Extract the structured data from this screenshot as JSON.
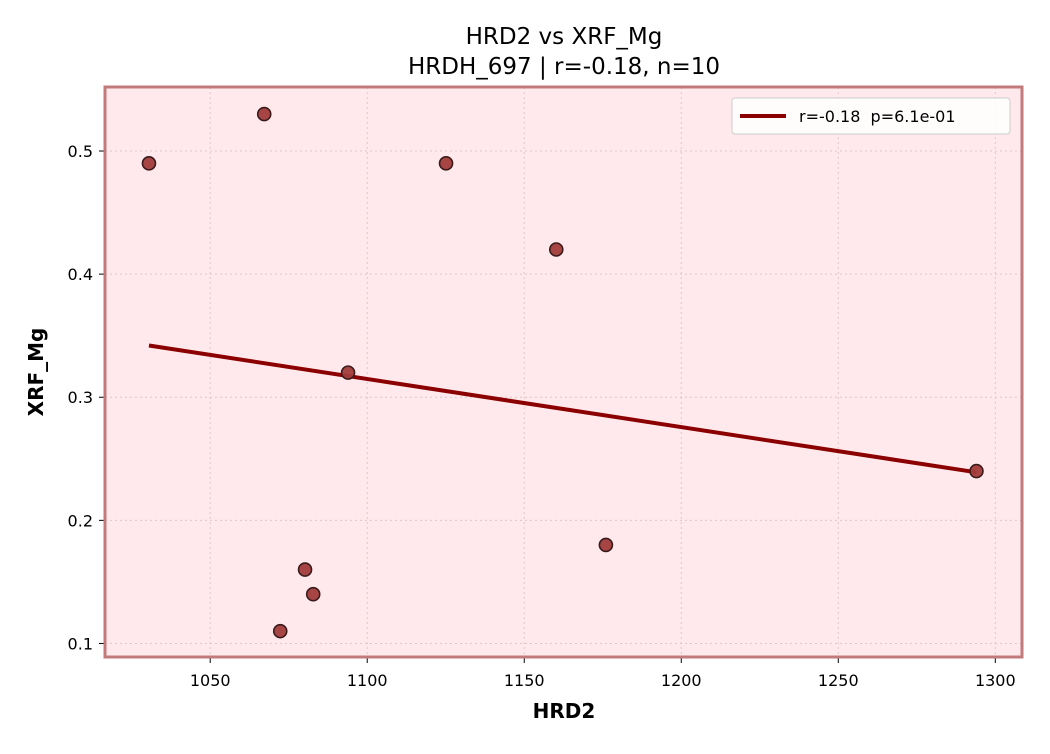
{
  "chart_data": {
    "type": "scatter",
    "title": "HRD2 vs XRF_Mg",
    "subtitle": "HRDH_697 | r=-0.18, n=10",
    "xlabel": "HRD2",
    "ylabel": "XRF_Mg",
    "xlim": [
      1016.5,
      1308.5
    ],
    "ylim": [
      0.089,
      0.552
    ],
    "x_ticks": [
      1050,
      1100,
      1150,
      1200,
      1250,
      1300
    ],
    "x_tick_labels": [
      "1050",
      "1100",
      "1150",
      "1200",
      "1250",
      "1300"
    ],
    "y_ticks": [
      0.1,
      0.2,
      0.3,
      0.4,
      0.5
    ],
    "y_tick_labels": [
      "0.1",
      "0.2",
      "0.3",
      "0.4",
      "0.5"
    ],
    "grid": true,
    "legend_position": "top-right",
    "points": [
      {
        "x": 1030.5,
        "y": 0.49
      },
      {
        "x": 1067.2,
        "y": 0.53
      },
      {
        "x": 1072.3,
        "y": 0.11
      },
      {
        "x": 1080.2,
        "y": 0.16
      },
      {
        "x": 1082.8,
        "y": 0.14
      },
      {
        "x": 1093.9,
        "y": 0.32
      },
      {
        "x": 1125.1,
        "y": 0.49
      },
      {
        "x": 1160.2,
        "y": 0.42
      },
      {
        "x": 1176.0,
        "y": 0.18
      },
      {
        "x": 1294.0,
        "y": 0.24
      }
    ],
    "fit_line": {
      "x": [
        1030.5,
        1294.0
      ],
      "y": [
        0.342,
        0.239
      ],
      "label": "r=-0.18  p=6.1e-01"
    },
    "colors": {
      "plot_background": "#ffe9ec",
      "frame": "#c27a7a",
      "point_fill": "#a23b3b",
      "point_edge": "#3a1a1a",
      "fit_line": "#8b0000",
      "grid": "#dcc7c9"
    }
  }
}
